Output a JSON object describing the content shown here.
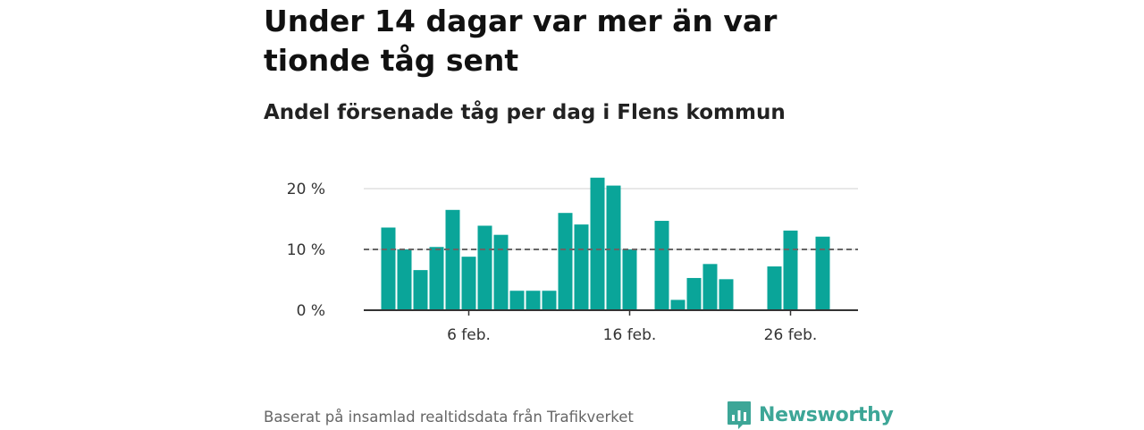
{
  "title": "Under 14 dagar var mer än var tionde tåg sent",
  "subtitle": "Andel försenade tåg per dag i Flens kommun",
  "footer": {
    "source": "Baserat på insamlad realtidsdata från Trafikverket",
    "brand": "Newsworthy"
  },
  "colors": {
    "bar": "#0aa599",
    "reference_line": "#666666",
    "gridline": "#d9d9d9",
    "axis": "#333333",
    "brand": "#3da697"
  },
  "chart_data": {
    "type": "bar",
    "x": [
      "2024-02-01",
      "2024-02-02",
      "2024-02-03",
      "2024-02-04",
      "2024-02-05",
      "2024-02-06",
      "2024-02-07",
      "2024-02-08",
      "2024-02-09",
      "2024-02-10",
      "2024-02-11",
      "2024-02-12",
      "2024-02-13",
      "2024-02-14",
      "2024-02-15",
      "2024-02-16",
      "2024-02-17",
      "2024-02-18",
      "2024-02-19",
      "2024-02-20",
      "2024-02-21",
      "2024-02-22",
      "2024-02-23",
      "2024-02-24",
      "2024-02-25",
      "2024-02-26",
      "2024-02-27",
      "2024-02-28",
      "2024-02-29"
    ],
    "values": [
      13.6,
      10.0,
      6.6,
      10.4,
      16.5,
      8.8,
      13.9,
      12.4,
      3.2,
      3.2,
      3.2,
      16.0,
      14.1,
      21.8,
      20.5,
      10.0,
      null,
      14.7,
      1.7,
      5.3,
      7.6,
      5.1,
      null,
      null,
      7.2,
      13.1,
      null,
      12.1,
      null
    ],
    "ylim": [
      0,
      24
    ],
    "yticks": [
      0,
      10,
      20
    ],
    "ytick_labels": [
      "0 %",
      "10 %",
      "20 %"
    ],
    "xticks": [
      "2024-02-06",
      "2024-02-16",
      "2024-02-26"
    ],
    "xtick_labels": [
      "6 feb.",
      "16 feb.",
      "26 feb."
    ],
    "reference_line": {
      "y": 10,
      "style": "dashed"
    },
    "grid": "horizontal",
    "xlabel": "",
    "ylabel": ""
  }
}
